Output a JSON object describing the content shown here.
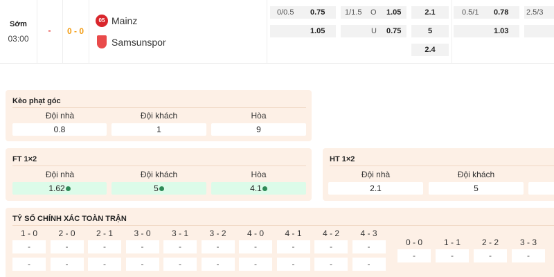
{
  "match": {
    "status": "Sớm",
    "time": "03:00",
    "dash": "-",
    "score": "0 - 0",
    "home": "Mainz",
    "away": "Samsunspor"
  },
  "odds": {
    "hdp": {
      "line": "0/0.5",
      "home": "0.75",
      "away": "1.05"
    },
    "ou": {
      "line": "1/1.5",
      "o_label": "O",
      "o": "1.05",
      "u_label": "U",
      "u": "0.75"
    },
    "x12": {
      "home": "2.1",
      "away": "5",
      "draw": "2.4"
    },
    "ht_hdp": {
      "line": "0.5/1",
      "home": "0.78",
      "away": "1.03"
    },
    "ht_ou": {
      "line": "2.5/3"
    }
  },
  "corner": {
    "title": "Kèo phạt góc",
    "cols": [
      "Đội nhà",
      "Đội khách",
      "Hòa"
    ],
    "values": [
      "0.8",
      "1",
      "9"
    ]
  },
  "ft": {
    "title": "FT 1×2",
    "cols": [
      "Đội nhà",
      "Đội khách",
      "Hòa"
    ],
    "values": [
      "1.62",
      "5",
      "4.1"
    ]
  },
  "ht": {
    "title": "HT 1×2",
    "cols": [
      "Đội nhà",
      "Đội khách"
    ],
    "values": [
      "2.1",
      "5",
      ""
    ]
  },
  "exact": {
    "title": "TỶ SỐ CHÍNH XÁC TOÀN TRẬN",
    "home_scores": [
      "1 - 0",
      "2 - 0",
      "2 - 1",
      "3 - 0",
      "3 - 1",
      "3 - 2",
      "4 - 0",
      "4 - 1",
      "4 - 2",
      "4 - 3"
    ],
    "home_row1": [
      "-",
      "-",
      "-",
      "-",
      "-",
      "-",
      "-",
      "-",
      "-",
      "-"
    ],
    "home_row2": [
      "-",
      "-",
      "-",
      "-",
      "-",
      "-",
      "-",
      "-",
      "-",
      "-"
    ],
    "draw_scores": [
      "0 - 0",
      "1 - 1",
      "2 - 2",
      "3 - 3"
    ],
    "draw_row": [
      "-",
      "-",
      "-",
      "-"
    ]
  },
  "colors": {
    "accent_red": "#e53935",
    "accent_orange": "#f39c12",
    "card_bg": "#fdf0e6",
    "green_cell": "#dcfbe9"
  }
}
